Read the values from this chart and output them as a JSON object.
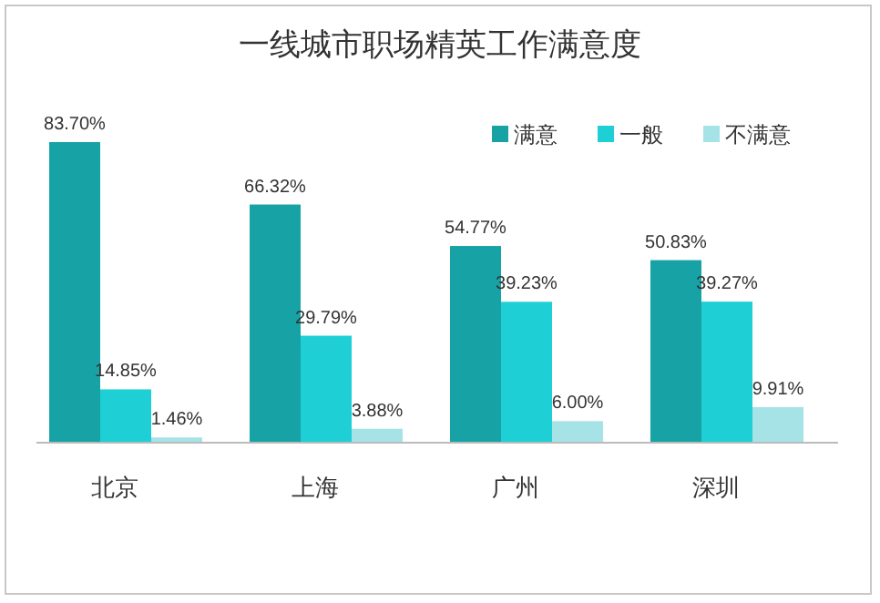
{
  "chart_data": {
    "type": "bar",
    "title": "一线城市职场精英工作满意度",
    "categories": [
      "北京",
      "上海",
      "广州",
      "深圳"
    ],
    "series": [
      {
        "name": "满意",
        "color": "#17a3a5",
        "values": [
          83.7,
          66.32,
          54.77,
          50.83
        ],
        "value_labels": [
          "83.70%",
          "66.32%",
          "54.77%",
          "50.83%"
        ]
      },
      {
        "name": "一般",
        "color": "#1ecfd6",
        "values": [
          14.85,
          29.79,
          39.23,
          39.27
        ],
        "value_labels": [
          "14.85%",
          "29.79%",
          "39.23%",
          "39.27%"
        ]
      },
      {
        "name": "不满意",
        "color": "#a5e3e6",
        "values": [
          1.46,
          3.88,
          6.0,
          9.91
        ],
        "value_labels": [
          "1.46%",
          "3.88%",
          "6.00%",
          "9.91%"
        ]
      }
    ],
    "legend": "top right"
  }
}
